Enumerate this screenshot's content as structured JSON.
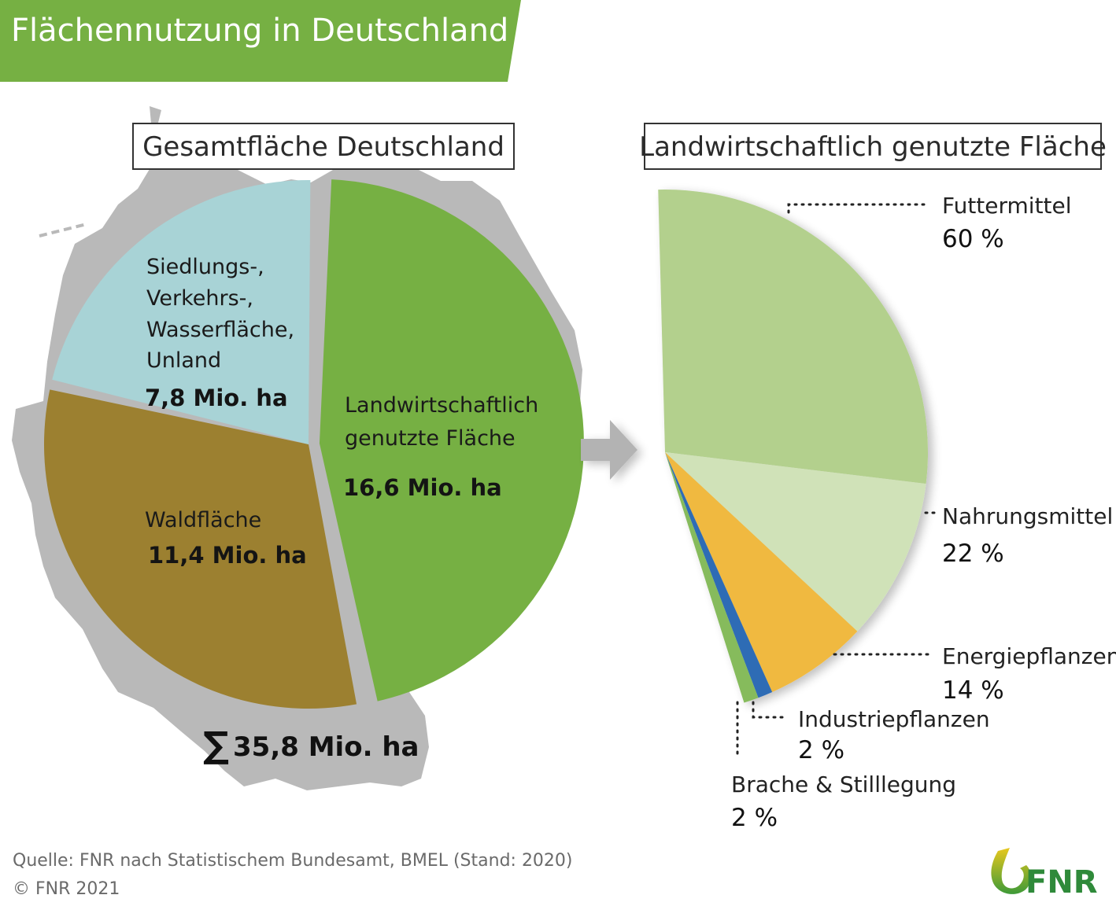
{
  "header": {
    "title": "Flächennutzung in Deutschland",
    "color": "#76b043"
  },
  "chart_data": [
    {
      "type": "pie",
      "title": "Gesamtfläche Deutschland",
      "unit": "Mio. ha",
      "total_label": "35,8 Mio. ha",
      "total_symbol": "∑",
      "total": 35.8,
      "slices": [
        {
          "name": "Landwirtschaftlich genutzte Fläche",
          "label_lines": [
            "Landwirtschaftlich",
            "genutzte Fläche"
          ],
          "value": 16.6,
          "value_label": "16,6 Mio. ha",
          "color": "#76b043",
          "exploded": true
        },
        {
          "name": "Waldfläche",
          "label_lines": [
            "Waldfläche"
          ],
          "value": 11.4,
          "value_label": "11,4 Mio. ha",
          "color": "#9c8030",
          "exploded": false
        },
        {
          "name": "Siedlungs-, Verkehrs-, Wasserfläche, Unland",
          "label_lines": [
            "Siedlungs-,",
            "Verkehrs-,",
            "Wasserfläche,",
            "Unland"
          ],
          "value": 7.8,
          "value_label": "7,8 Mio. ha",
          "color": "#a8d3d6",
          "exploded": false
        }
      ],
      "background": "map of Germany",
      "background_color": "#b9b9b9"
    },
    {
      "type": "pie",
      "title": "Landwirtschaftlich genutzte Fläche",
      "unit": "%",
      "slices": [
        {
          "name": "Futtermittel",
          "value": 60,
          "value_label": "60 %",
          "color": "#b3d08d"
        },
        {
          "name": "Nahrungsmittel",
          "value": 22,
          "value_label": "22 %",
          "color": "#d0e2b8"
        },
        {
          "name": "Energiepflanzen",
          "value": 14,
          "value_label": "14 %",
          "color": "#f0b940"
        },
        {
          "name": "Industriepflanzen",
          "value": 2,
          "value_label": "2 %",
          "color": "#2f6cb5"
        },
        {
          "name": "Brache & Stilllegung",
          "value": 2,
          "value_label": "2 %",
          "color": "#86bb5c"
        }
      ]
    }
  ],
  "arrow": {
    "color": "#b3b3b3"
  },
  "footer": {
    "source": "Quelle: FNR nach Statistischem Bundesamt, BMEL (Stand: 2020)",
    "copyright": "© FNR 2021"
  },
  "logo": {
    "text": "FNR",
    "color": "#2f8a3a",
    "accent": "#e6c81e"
  }
}
